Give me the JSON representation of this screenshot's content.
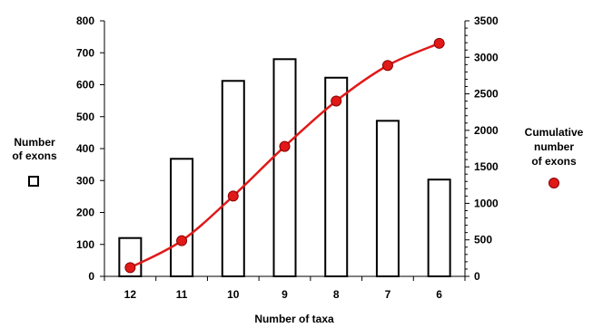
{
  "chart_data": {
    "type": "bar",
    "xlabel": "Number of taxa",
    "categories": [
      "12",
      "11",
      "10",
      "9",
      "8",
      "7",
      "6"
    ],
    "series": [
      {
        "name": "Number of exons",
        "type": "bar",
        "axis": "left",
        "values": [
          120,
          368,
          612,
          680,
          622,
          487,
          303
        ],
        "color": "#ffffff",
        "stroke": "#000000"
      },
      {
        "name": "Cumulative number of exons",
        "type": "line",
        "axis": "right",
        "values": [
          120,
          488,
          1100,
          1780,
          2402,
          2889,
          3192
        ],
        "color": "#e11919",
        "marker_fill": "#e11919"
      }
    ],
    "left_axis": {
      "label": "Number of exons",
      "ylim": [
        0,
        800
      ],
      "ticks": [
        "0",
        "100",
        "200",
        "300",
        "400",
        "500",
        "600",
        "700",
        "800"
      ]
    },
    "right_axis": {
      "label": "Cumulative number of exons",
      "ylim": [
        0,
        3500
      ],
      "ticks": [
        "0",
        "500",
        "1000",
        "1500",
        "2000",
        "2500",
        "3000",
        "3500"
      ]
    },
    "grid": false,
    "legend": "axis-side markers"
  },
  "labels": {
    "left_line1": "Number",
    "left_line2": "of exons",
    "right_line1": "Cumulative",
    "right_line2": "number",
    "right_line3": "of exons"
  }
}
